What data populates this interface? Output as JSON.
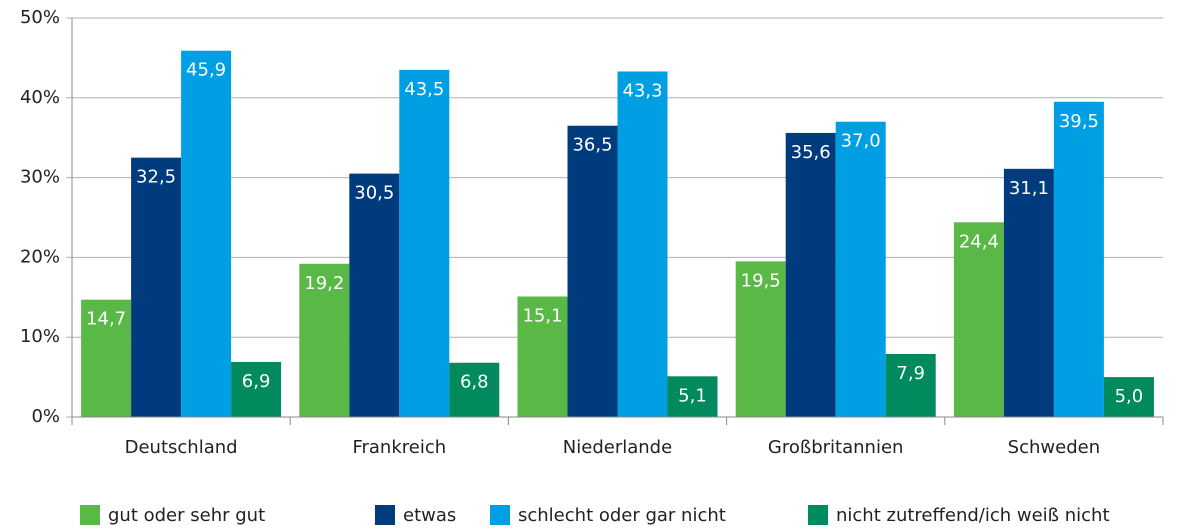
{
  "chart_data": {
    "type": "bar",
    "categories": [
      "Deutschland",
      "Frankreich",
      "Niederlande",
      "Großbritannien",
      "Schweden"
    ],
    "series": [
      {
        "name": "gut oder sehr gut",
        "color": "#5ab946",
        "values": [
          14.7,
          19.2,
          15.1,
          19.5,
          24.4
        ],
        "value_labels": [
          "14,7",
          "19,2",
          "15,1",
          "19,5",
          "24,4"
        ]
      },
      {
        "name": "etwas",
        "color": "#003c7d",
        "values": [
          32.5,
          30.5,
          36.5,
          35.6,
          31.1
        ],
        "value_labels": [
          "32,5",
          "30,5",
          "36,5",
          "35,6",
          "31,1"
        ]
      },
      {
        "name": "schlecht oder gar nicht",
        "color": "#009fe3",
        "values": [
          45.9,
          43.5,
          43.3,
          37.0,
          39.5
        ],
        "value_labels": [
          "45,9",
          "43,5",
          "43,3",
          "37,0",
          "39,5"
        ]
      },
      {
        "name": "nicht zutreffend/ich weiß nicht",
        "color": "#008a5e",
        "values": [
          6.9,
          6.8,
          5.1,
          7.9,
          5.0
        ],
        "value_labels": [
          "6,9",
          "6,8",
          "5,1",
          "7,9",
          "5,0"
        ]
      }
    ],
    "ylim": [
      0,
      50
    ],
    "yticks": [
      {
        "value": 0,
        "label": "0%"
      },
      {
        "value": 10,
        "label": "10%"
      },
      {
        "value": 20,
        "label": "20%"
      },
      {
        "value": 30,
        "label": "30%"
      },
      {
        "value": 40,
        "label": "40%"
      },
      {
        "value": 50,
        "label": "50%"
      }
    ],
    "grid": true,
    "legend": "bottom"
  }
}
